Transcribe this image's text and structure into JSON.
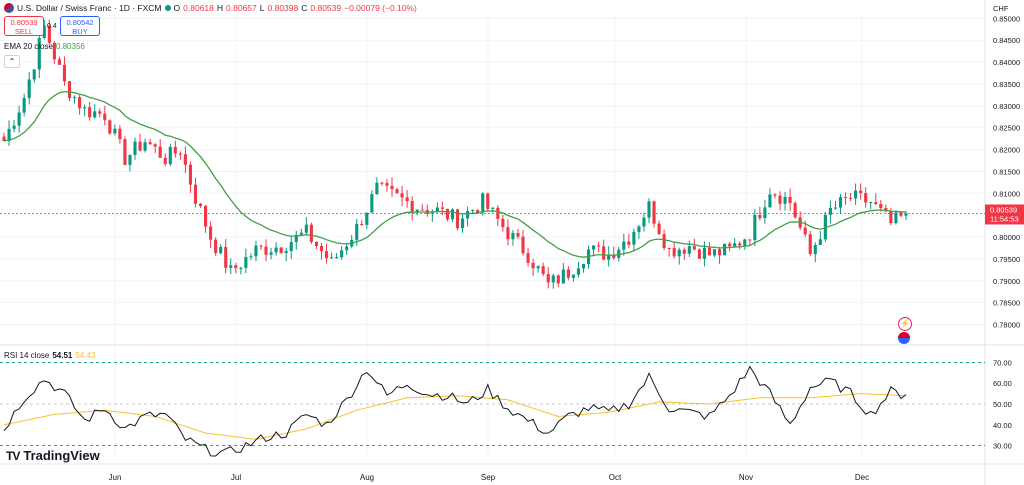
{
  "header": {
    "symbol": "U.S. Dollar / Swiss Franc · 1D · FXCM",
    "open_label": "O",
    "open": "0.80618",
    "high_label": "H",
    "high": "0.80657",
    "low_label": "L",
    "low": "0.80398",
    "close_label": "C",
    "close": "0.80539",
    "change": "−0.00079 (−0.10%)"
  },
  "trade": {
    "sell_price": "0.80539",
    "sell_label": "SELL",
    "spread": "0.4",
    "buy_price": "0.80542",
    "buy_label": "BUY"
  },
  "currency": "CHF",
  "logo_text": "TradingView",
  "colors": {
    "up": "#089981",
    "down": "#f23645",
    "ema": "#43a047",
    "rsi": "#131722",
    "rsi_ma": "#f7c32c",
    "label_blue": "#2962ff"
  },
  "indicators": {
    "ema": {
      "label": "EMA 20 close",
      "value": "0.80356"
    },
    "rsi": {
      "label": "RSI 14 close",
      "value": "54.51",
      "ma_value": "54.43"
    }
  },
  "chart_data": {
    "type": "candlestick",
    "x_labels": [
      "Jun",
      "Jul",
      "Aug",
      "Sep",
      "Oct",
      "Nov",
      "Dec"
    ],
    "price_ticks": [
      "0.85000",
      "0.84500",
      "0.84000",
      "0.83500",
      "0.83000",
      "0.82500",
      "0.82000",
      "0.81500",
      "0.81000",
      "0.80500",
      "0.80000",
      "0.79500",
      "0.79000",
      "0.78500",
      "0.78000"
    ],
    "ylim": [
      0.776,
      0.851
    ],
    "last_price_label": "0.80539",
    "countdown_label": "11:54:53",
    "rsi_ticks": [
      "70.00",
      "60.00",
      "50.00",
      "40.00",
      "30.00"
    ],
    "rsi_levels": [
      70,
      50,
      30
    ],
    "rsi_ylim": [
      24,
      76
    ],
    "price_anchors": [
      [
        0,
        0.822
      ],
      [
        4,
        0.832
      ],
      [
        8,
        0.848
      ],
      [
        12,
        0.835
      ],
      [
        16,
        0.829
      ],
      [
        20,
        0.828
      ],
      [
        24,
        0.818
      ],
      [
        28,
        0.822
      ],
      [
        32,
        0.818
      ],
      [
        35,
        0.82
      ],
      [
        38,
        0.809
      ],
      [
        41,
        0.8
      ],
      [
        45,
        0.792
      ],
      [
        50,
        0.797
      ],
      [
        55,
        0.798
      ],
      [
        60,
        0.801
      ],
      [
        65,
        0.794
      ],
      [
        70,
        0.802
      ],
      [
        74,
        0.811
      ],
      [
        78,
        0.809
      ],
      [
        82,
        0.807
      ],
      [
        86,
        0.806
      ],
      [
        90,
        0.804
      ],
      [
        95,
        0.808
      ],
      [
        100,
        0.801
      ],
      [
        104,
        0.796
      ],
      [
        108,
        0.789
      ],
      [
        112,
        0.792
      ],
      [
        116,
        0.797
      ],
      [
        120,
        0.796
      ],
      [
        124,
        0.8
      ],
      [
        128,
        0.807
      ],
      [
        132,
        0.797
      ],
      [
        136,
        0.798
      ],
      [
        140,
        0.796
      ],
      [
        144,
        0.797
      ],
      [
        148,
        0.801
      ],
      [
        152,
        0.811
      ],
      [
        156,
        0.808
      ],
      [
        160,
        0.796
      ],
      [
        164,
        0.806
      ],
      [
        168,
        0.809
      ],
      [
        172,
        0.808
      ],
      [
        176,
        0.803
      ],
      [
        179,
        0.805
      ]
    ],
    "rsi_anchors": [
      [
        0,
        38
      ],
      [
        4,
        53
      ],
      [
        8,
        62
      ],
      [
        12,
        55
      ],
      [
        16,
        42
      ],
      [
        20,
        48
      ],
      [
        24,
        38
      ],
      [
        28,
        44
      ],
      [
        32,
        45
      ],
      [
        36,
        33
      ],
      [
        40,
        28
      ],
      [
        44,
        26
      ],
      [
        48,
        30
      ],
      [
        52,
        34
      ],
      [
        56,
        36
      ],
      [
        60,
        45
      ],
      [
        64,
        40
      ],
      [
        68,
        52
      ],
      [
        72,
        67
      ],
      [
        76,
        54
      ],
      [
        80,
        60
      ],
      [
        84,
        55
      ],
      [
        88,
        54
      ],
      [
        92,
        50
      ],
      [
        96,
        57
      ],
      [
        100,
        48
      ],
      [
        104,
        42
      ],
      [
        108,
        36
      ],
      [
        112,
        44
      ],
      [
        116,
        48
      ],
      [
        120,
        46
      ],
      [
        124,
        50
      ],
      [
        128,
        63
      ],
      [
        132,
        48
      ],
      [
        136,
        46
      ],
      [
        140,
        44
      ],
      [
        144,
        54
      ],
      [
        148,
        67
      ],
      [
        152,
        55
      ],
      [
        156,
        40
      ],
      [
        160,
        58
      ],
      [
        164,
        61
      ],
      [
        168,
        55
      ],
      [
        172,
        45
      ],
      [
        176,
        56
      ],
      [
        179,
        54
      ]
    ],
    "rsi_ma_anchors": [
      [
        0,
        40
      ],
      [
        10,
        45
      ],
      [
        20,
        47
      ],
      [
        30,
        44
      ],
      [
        40,
        36
      ],
      [
        50,
        33
      ],
      [
        60,
        38
      ],
      [
        70,
        47
      ],
      [
        80,
        53
      ],
      [
        90,
        54
      ],
      [
        100,
        52
      ],
      [
        110,
        44
      ],
      [
        120,
        46
      ],
      [
        130,
        51
      ],
      [
        140,
        50
      ],
      [
        150,
        53
      ],
      [
        160,
        53
      ],
      [
        170,
        55
      ],
      [
        179,
        54
      ]
    ]
  }
}
